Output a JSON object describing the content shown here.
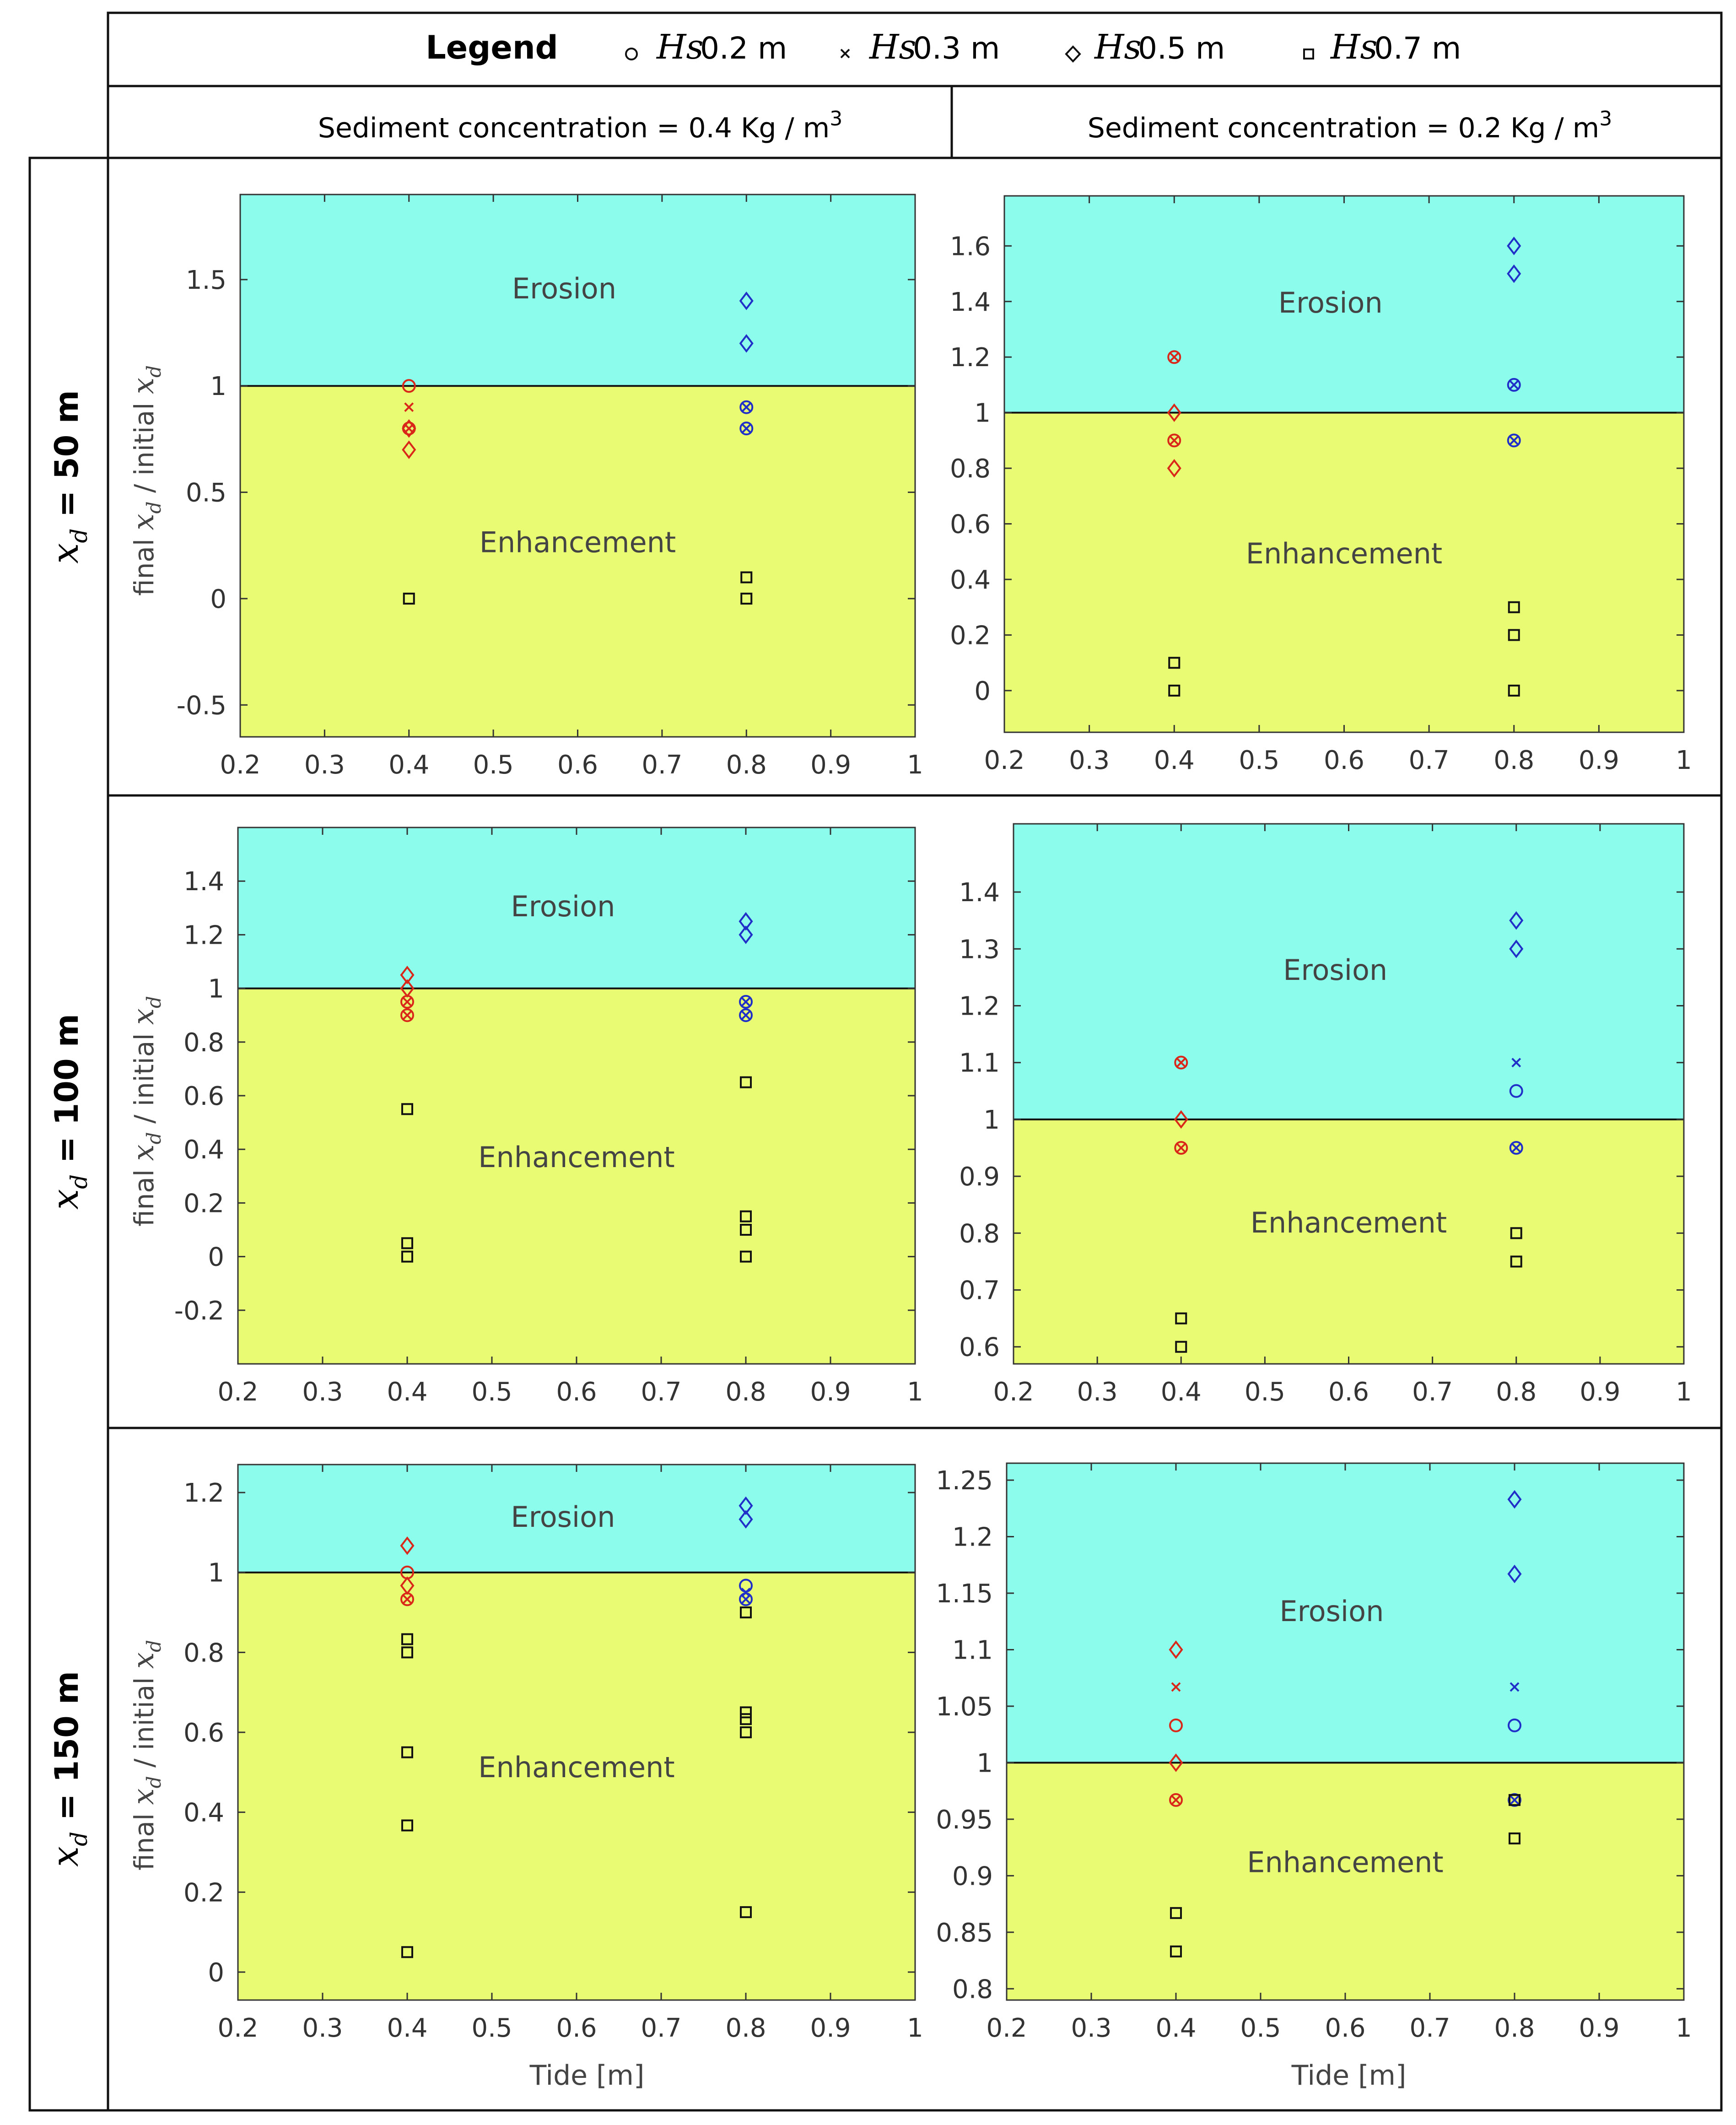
{
  "legend": {
    "title": "Legend",
    "items": [
      {
        "symbol": "circle",
        "label_var": "Hs",
        "label_value": "0.2 m"
      },
      {
        "symbol": "x",
        "label_var": "Hs",
        "label_value": "0.3 m"
      },
      {
        "symbol": "diamond",
        "label_var": "Hs",
        "label_value": "0.5 m"
      },
      {
        "symbol": "square",
        "label_var": "Hs",
        "label_value": "0.7 m"
      }
    ]
  },
  "columns": [
    {
      "header": "Sediment concentration = 0.4 Kg / m",
      "sup": "3"
    },
    {
      "header": "Sediment concentration = 0.2 Kg / m",
      "sup": "3"
    }
  ],
  "rows": [
    {
      "label_var": "x",
      "label_sub": "d",
      "label_rest": " = 50 m"
    },
    {
      "label_var": "x",
      "label_sub": "d",
      "label_rest": " = 100 m"
    },
    {
      "label_var": "x",
      "label_sub": "d",
      "label_rest": " = 150 m"
    }
  ],
  "ylabel": {
    "prefix": "final ",
    "var": "x",
    "sub": "d",
    "middle": " / initial ",
    "var2": "x",
    "sub2": "d"
  },
  "xlabel": "Tide [m]",
  "region_labels": {
    "top": "Erosion",
    "bottom": "Enhancement"
  },
  "colors": {
    "erosion": "#8cfcec",
    "enhancement": "#e9fb72",
    "red": "#d9281a",
    "blue": "#1f2fc8",
    "black": "#111111"
  },
  "chart_data": [
    {
      "type": "scatter",
      "row": 0,
      "col": 0,
      "xlim": [
        0.2,
        1
      ],
      "ylim": [
        -0.65,
        1.9
      ],
      "threshold": 1,
      "xticks": [
        "0.2",
        "0.3",
        "0.4",
        "0.5",
        "0.6",
        "0.7",
        "0.8",
        "0.9",
        "1"
      ],
      "yticks": [
        "-0.5",
        "0",
        "0.5",
        "1",
        "1.5"
      ],
      "points": [
        {
          "x": 0.4,
          "y": 1.0,
          "m": "circle",
          "c": "red"
        },
        {
          "x": 0.4,
          "y": 0.9,
          "m": "x",
          "c": "red"
        },
        {
          "x": 0.4,
          "y": 0.8,
          "m": "circle",
          "c": "red"
        },
        {
          "x": 0.4,
          "y": 0.8,
          "m": "x",
          "c": "red"
        },
        {
          "x": 0.4,
          "y": 0.8,
          "m": "diamond",
          "c": "red"
        },
        {
          "x": 0.4,
          "y": 0.7,
          "m": "diamond",
          "c": "red"
        },
        {
          "x": 0.4,
          "y": 0.0,
          "m": "square",
          "c": "black"
        },
        {
          "x": 0.8,
          "y": 1.4,
          "m": "diamond",
          "c": "blue"
        },
        {
          "x": 0.8,
          "y": 1.2,
          "m": "diamond",
          "c": "blue"
        },
        {
          "x": 0.8,
          "y": 0.9,
          "m": "circle",
          "c": "blue"
        },
        {
          "x": 0.8,
          "y": 0.9,
          "m": "x",
          "c": "blue"
        },
        {
          "x": 0.8,
          "y": 0.8,
          "m": "circle",
          "c": "blue"
        },
        {
          "x": 0.8,
          "y": 0.8,
          "m": "x",
          "c": "blue"
        },
        {
          "x": 0.8,
          "y": 0.1,
          "m": "square",
          "c": "black"
        },
        {
          "x": 0.8,
          "y": 0.0,
          "m": "square",
          "c": "black"
        }
      ]
    },
    {
      "type": "scatter",
      "row": 0,
      "col": 1,
      "xlim": [
        0.2,
        1
      ],
      "ylim": [
        -0.15,
        1.78
      ],
      "threshold": 1,
      "xticks": [
        "0.2",
        "0.3",
        "0.4",
        "0.5",
        "0.6",
        "0.7",
        "0.8",
        "0.9",
        "1"
      ],
      "yticks": [
        "0",
        "0.2",
        "0.4",
        "0.6",
        "0.8",
        "1",
        "1.2",
        "1.4",
        "1.6"
      ],
      "points": [
        {
          "x": 0.4,
          "y": 1.2,
          "m": "circle",
          "c": "red"
        },
        {
          "x": 0.4,
          "y": 1.2,
          "m": "x",
          "c": "red"
        },
        {
          "x": 0.4,
          "y": 1.0,
          "m": "diamond",
          "c": "red"
        },
        {
          "x": 0.4,
          "y": 0.9,
          "m": "circle",
          "c": "red"
        },
        {
          "x": 0.4,
          "y": 0.9,
          "m": "x",
          "c": "red"
        },
        {
          "x": 0.4,
          "y": 0.8,
          "m": "diamond",
          "c": "red"
        },
        {
          "x": 0.4,
          "y": 0.1,
          "m": "square",
          "c": "black"
        },
        {
          "x": 0.4,
          "y": 0.0,
          "m": "square",
          "c": "black"
        },
        {
          "x": 0.8,
          "y": 1.6,
          "m": "diamond",
          "c": "blue"
        },
        {
          "x": 0.8,
          "y": 1.5,
          "m": "diamond",
          "c": "blue"
        },
        {
          "x": 0.8,
          "y": 1.1,
          "m": "circle",
          "c": "blue"
        },
        {
          "x": 0.8,
          "y": 1.1,
          "m": "x",
          "c": "blue"
        },
        {
          "x": 0.8,
          "y": 0.9,
          "m": "circle",
          "c": "blue"
        },
        {
          "x": 0.8,
          "y": 0.9,
          "m": "x",
          "c": "blue"
        },
        {
          "x": 0.8,
          "y": 0.3,
          "m": "square",
          "c": "black"
        },
        {
          "x": 0.8,
          "y": 0.2,
          "m": "square",
          "c": "black"
        },
        {
          "x": 0.8,
          "y": 0.0,
          "m": "square",
          "c": "black"
        }
      ]
    },
    {
      "type": "scatter",
      "row": 1,
      "col": 0,
      "xlim": [
        0.2,
        1
      ],
      "ylim": [
        -0.4,
        1.6
      ],
      "threshold": 1,
      "xticks": [
        "0.2",
        "0.3",
        "0.4",
        "0.5",
        "0.6",
        "0.7",
        "0.8",
        "0.9",
        "1"
      ],
      "yticks": [
        "-0.2",
        "0",
        "0.2",
        "0.4",
        "0.6",
        "0.8",
        "1",
        "1.2",
        "1.4"
      ],
      "points": [
        {
          "x": 0.4,
          "y": 1.05,
          "m": "diamond",
          "c": "red"
        },
        {
          "x": 0.4,
          "y": 1.0,
          "m": "diamond",
          "c": "red"
        },
        {
          "x": 0.4,
          "y": 0.95,
          "m": "circle",
          "c": "red"
        },
        {
          "x": 0.4,
          "y": 0.95,
          "m": "x",
          "c": "red"
        },
        {
          "x": 0.4,
          "y": 0.9,
          "m": "circle",
          "c": "red"
        },
        {
          "x": 0.4,
          "y": 0.9,
          "m": "x",
          "c": "red"
        },
        {
          "x": 0.4,
          "y": 0.55,
          "m": "square",
          "c": "black"
        },
        {
          "x": 0.4,
          "y": 0.05,
          "m": "square",
          "c": "black"
        },
        {
          "x": 0.4,
          "y": 0.0,
          "m": "square",
          "c": "black"
        },
        {
          "x": 0.8,
          "y": 1.25,
          "m": "diamond",
          "c": "blue"
        },
        {
          "x": 0.8,
          "y": 1.2,
          "m": "diamond",
          "c": "blue"
        },
        {
          "x": 0.8,
          "y": 0.95,
          "m": "circle",
          "c": "blue"
        },
        {
          "x": 0.8,
          "y": 0.95,
          "m": "x",
          "c": "blue"
        },
        {
          "x": 0.8,
          "y": 0.9,
          "m": "circle",
          "c": "blue"
        },
        {
          "x": 0.8,
          "y": 0.9,
          "m": "x",
          "c": "blue"
        },
        {
          "x": 0.8,
          "y": 0.65,
          "m": "square",
          "c": "black"
        },
        {
          "x": 0.8,
          "y": 0.15,
          "m": "square",
          "c": "black"
        },
        {
          "x": 0.8,
          "y": 0.1,
          "m": "square",
          "c": "black"
        },
        {
          "x": 0.8,
          "y": 0.0,
          "m": "square",
          "c": "black"
        }
      ]
    },
    {
      "type": "scatter",
      "row": 1,
      "col": 1,
      "xlim": [
        0.2,
        1
      ],
      "ylim": [
        0.57,
        1.52
      ],
      "threshold": 1,
      "xticks": [
        "0.2",
        "0.3",
        "0.4",
        "0.5",
        "0.6",
        "0.7",
        "0.8",
        "0.9",
        "1"
      ],
      "yticks": [
        "0.6",
        "0.7",
        "0.8",
        "0.9",
        "1",
        "1.1",
        "1.2",
        "1.3",
        "1.4"
      ],
      "points": [
        {
          "x": 0.4,
          "y": 1.1,
          "m": "circle",
          "c": "red"
        },
        {
          "x": 0.4,
          "y": 1.1,
          "m": "x",
          "c": "red"
        },
        {
          "x": 0.4,
          "y": 1.0,
          "m": "diamond",
          "c": "red"
        },
        {
          "x": 0.4,
          "y": 0.95,
          "m": "circle",
          "c": "red"
        },
        {
          "x": 0.4,
          "y": 0.95,
          "m": "x",
          "c": "red"
        },
        {
          "x": 0.4,
          "y": 0.65,
          "m": "square",
          "c": "black"
        },
        {
          "x": 0.4,
          "y": 0.6,
          "m": "square",
          "c": "black"
        },
        {
          "x": 0.8,
          "y": 1.35,
          "m": "diamond",
          "c": "blue"
        },
        {
          "x": 0.8,
          "y": 1.3,
          "m": "diamond",
          "c": "blue"
        },
        {
          "x": 0.8,
          "y": 1.1,
          "m": "x",
          "c": "blue"
        },
        {
          "x": 0.8,
          "y": 1.05,
          "m": "circle",
          "c": "blue"
        },
        {
          "x": 0.8,
          "y": 0.95,
          "m": "circle",
          "c": "blue"
        },
        {
          "x": 0.8,
          "y": 0.95,
          "m": "x",
          "c": "blue"
        },
        {
          "x": 0.8,
          "y": 0.8,
          "m": "square",
          "c": "black"
        },
        {
          "x": 0.8,
          "y": 0.75,
          "m": "square",
          "c": "black"
        }
      ]
    },
    {
      "type": "scatter",
      "row": 2,
      "col": 0,
      "xlim": [
        0.2,
        1
      ],
      "ylim": [
        -0.07,
        1.27
      ],
      "threshold": 1,
      "xticks": [
        "0.2",
        "0.3",
        "0.4",
        "0.5",
        "0.6",
        "0.7",
        "0.8",
        "0.9",
        "1"
      ],
      "yticks": [
        "0",
        "0.2",
        "0.4",
        "0.6",
        "0.8",
        "1",
        "1.2"
      ],
      "points": [
        {
          "x": 0.4,
          "y": 1.067,
          "m": "diamond",
          "c": "red"
        },
        {
          "x": 0.4,
          "y": 1.0,
          "m": "circle",
          "c": "red"
        },
        {
          "x": 0.4,
          "y": 0.967,
          "m": "diamond",
          "c": "red"
        },
        {
          "x": 0.4,
          "y": 0.933,
          "m": "circle",
          "c": "red"
        },
        {
          "x": 0.4,
          "y": 0.933,
          "m": "x",
          "c": "red"
        },
        {
          "x": 0.4,
          "y": 0.833,
          "m": "square",
          "c": "black"
        },
        {
          "x": 0.4,
          "y": 0.8,
          "m": "square",
          "c": "black"
        },
        {
          "x": 0.4,
          "y": 0.55,
          "m": "square",
          "c": "black"
        },
        {
          "x": 0.4,
          "y": 0.367,
          "m": "square",
          "c": "black"
        },
        {
          "x": 0.4,
          "y": 0.05,
          "m": "square",
          "c": "black"
        },
        {
          "x": 0.8,
          "y": 1.167,
          "m": "diamond",
          "c": "blue"
        },
        {
          "x": 0.8,
          "y": 1.133,
          "m": "diamond",
          "c": "blue"
        },
        {
          "x": 0.8,
          "y": 0.967,
          "m": "circle",
          "c": "blue"
        },
        {
          "x": 0.8,
          "y": 0.95,
          "m": "x",
          "c": "blue"
        },
        {
          "x": 0.8,
          "y": 0.933,
          "m": "circle",
          "c": "blue"
        },
        {
          "x": 0.8,
          "y": 0.933,
          "m": "x",
          "c": "blue"
        },
        {
          "x": 0.8,
          "y": 0.9,
          "m": "square",
          "c": "black"
        },
        {
          "x": 0.8,
          "y": 0.65,
          "m": "square",
          "c": "black"
        },
        {
          "x": 0.8,
          "y": 0.633,
          "m": "square",
          "c": "black"
        },
        {
          "x": 0.8,
          "y": 0.6,
          "m": "square",
          "c": "black"
        },
        {
          "x": 0.8,
          "y": 0.15,
          "m": "square",
          "c": "black"
        }
      ]
    },
    {
      "type": "scatter",
      "row": 2,
      "col": 1,
      "xlim": [
        0.2,
        1
      ],
      "ylim": [
        0.79,
        1.265
      ],
      "threshold": 1,
      "xticks": [
        "0.2",
        "0.3",
        "0.4",
        "0.5",
        "0.6",
        "0.7",
        "0.8",
        "0.9",
        "1"
      ],
      "yticks": [
        "0.8",
        "0.85",
        "0.9",
        "0.95",
        "1",
        "1.05",
        "1.1",
        "1.15",
        "1.2",
        "1.25"
      ],
      "points": [
        {
          "x": 0.4,
          "y": 1.1,
          "m": "diamond",
          "c": "red"
        },
        {
          "x": 0.4,
          "y": 1.067,
          "m": "x",
          "c": "red"
        },
        {
          "x": 0.4,
          "y": 1.033,
          "m": "circle",
          "c": "red"
        },
        {
          "x": 0.4,
          "y": 1.0,
          "m": "diamond",
          "c": "red"
        },
        {
          "x": 0.4,
          "y": 0.967,
          "m": "circle",
          "c": "red"
        },
        {
          "x": 0.4,
          "y": 0.967,
          "m": "x",
          "c": "red"
        },
        {
          "x": 0.4,
          "y": 0.867,
          "m": "square",
          "c": "black"
        },
        {
          "x": 0.4,
          "y": 0.833,
          "m": "square",
          "c": "black"
        },
        {
          "x": 0.8,
          "y": 1.233,
          "m": "diamond",
          "c": "blue"
        },
        {
          "x": 0.8,
          "y": 1.167,
          "m": "diamond",
          "c": "blue"
        },
        {
          "x": 0.8,
          "y": 1.067,
          "m": "x",
          "c": "blue"
        },
        {
          "x": 0.8,
          "y": 1.033,
          "m": "circle",
          "c": "blue"
        },
        {
          "x": 0.8,
          "y": 0.967,
          "m": "circle",
          "c": "blue"
        },
        {
          "x": 0.8,
          "y": 0.967,
          "m": "x",
          "c": "blue"
        },
        {
          "x": 0.8,
          "y": 0.967,
          "m": "square",
          "c": "black"
        },
        {
          "x": 0.8,
          "y": 0.933,
          "m": "square",
          "c": "black"
        }
      ]
    }
  ]
}
